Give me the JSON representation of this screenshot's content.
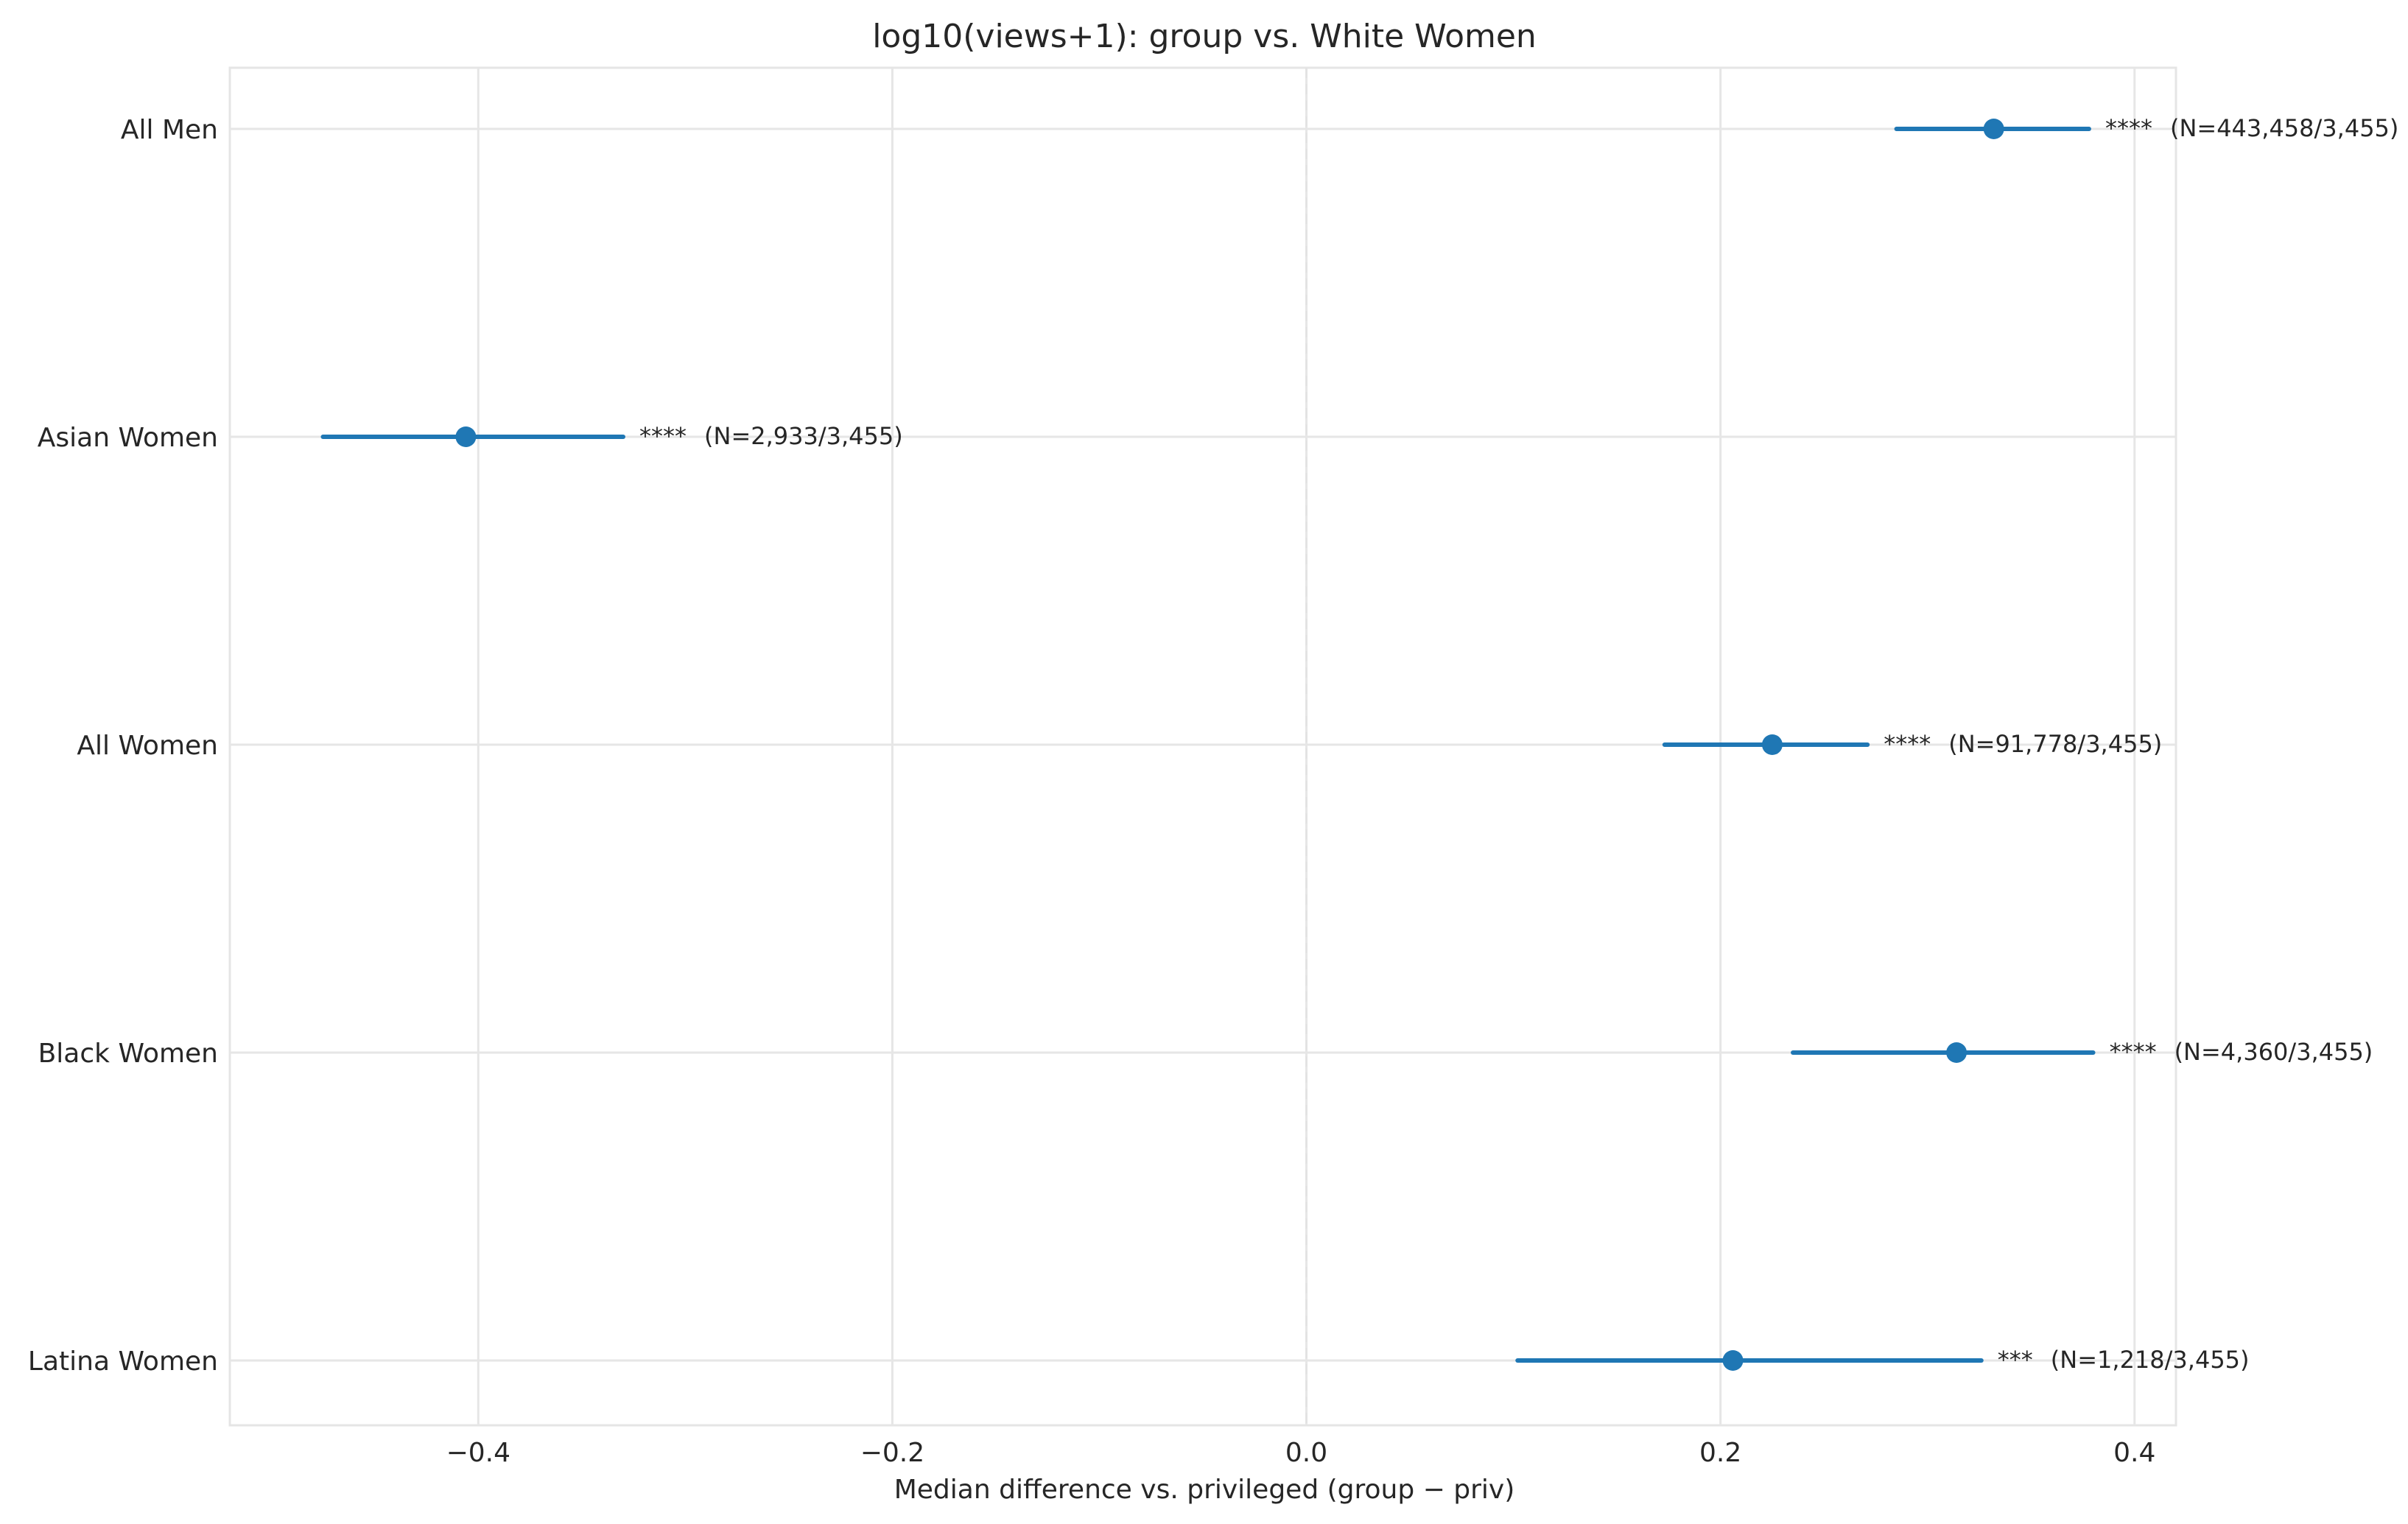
{
  "chart_data": {
    "type": "scatter",
    "title": "log10(views+1): group vs. White Women",
    "xlabel": "Median difference vs. privileged (group − priv)",
    "ylabel": "",
    "xlim": [
      -0.52,
      0.42
    ],
    "x_ticks": [
      -0.4,
      -0.2,
      0.0,
      0.2,
      0.4
    ],
    "x_tick_labels": [
      "−0.4",
      "−0.2",
      "0.0",
      "0.2",
      "0.4"
    ],
    "grid": true,
    "reference_line_x": 0.0,
    "point_color": "#1f77b4",
    "categories": [
      "All Men",
      "Asian Women",
      "All Women",
      "Black Women",
      "Latina Women"
    ],
    "points": [
      {
        "label": "All Men",
        "value": 0.332,
        "ci_low": 0.285,
        "ci_high": 0.378,
        "significance": "****",
        "n_text": "(N=443,458/3,455)"
      },
      {
        "label": "Asian Women",
        "value": -0.406,
        "ci_low": -0.475,
        "ci_high": -0.33,
        "significance": "****",
        "n_text": "(N=2,933/3,455)"
      },
      {
        "label": "All Women",
        "value": 0.225,
        "ci_low": 0.173,
        "ci_high": 0.271,
        "significance": "****",
        "n_text": "(N=91,778/3,455)"
      },
      {
        "label": "Black Women",
        "value": 0.314,
        "ci_low": 0.235,
        "ci_high": 0.38,
        "significance": "****",
        "n_text": "(N=4,360/3,455)"
      },
      {
        "label": "Latina Women",
        "value": 0.206,
        "ci_low": 0.102,
        "ci_high": 0.326,
        "significance": "***",
        "n_text": "(N=1,218/3,455)"
      }
    ]
  }
}
